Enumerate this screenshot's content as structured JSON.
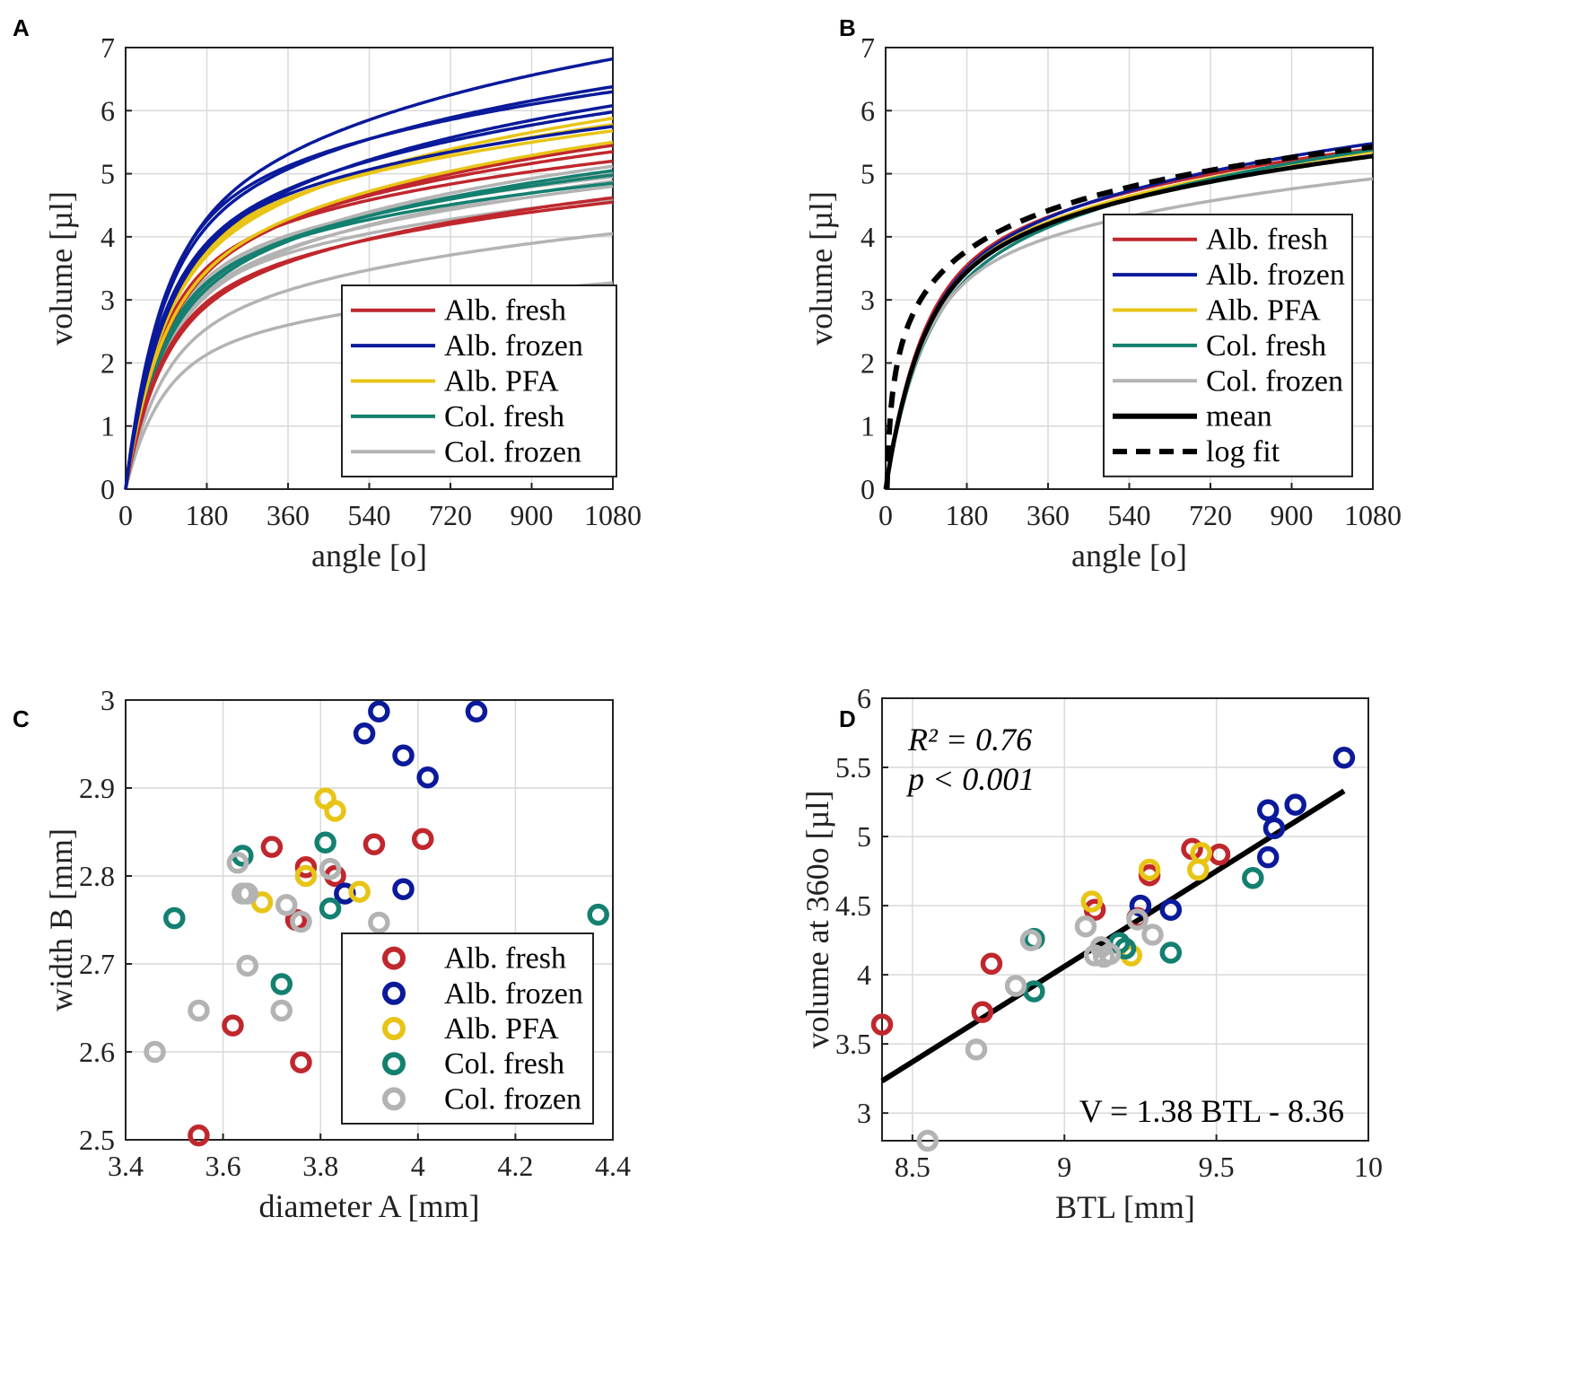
{
  "colors": {
    "alb_fresh": "#c0272d",
    "alb_frozen": "#0a1a9a",
    "alb_pfa": "#e8c416",
    "col_fresh": "#138070",
    "col_frozen": "#b3b3b3",
    "mean": "#000000"
  },
  "panel_labels": [
    "A",
    "B",
    "C",
    "D"
  ],
  "chart_data": [
    {
      "id": "A",
      "type": "line",
      "xlabel": "angle [o]",
      "ylabel": "volume [µl]",
      "xlim": [
        0,
        1080
      ],
      "ylim": [
        0,
        7
      ],
      "xticks": [
        0,
        180,
        360,
        540,
        720,
        900,
        1080
      ],
      "yticks": [
        0,
        1,
        2,
        3,
        4,
        5,
        6,
        7
      ],
      "grid": true,
      "legend_position": "bottom-right",
      "legend": [
        "Alb. fresh",
        "Alb. frozen",
        "Alb. PFA",
        "Col. fresh",
        "Col. frozen"
      ],
      "curve_model": "v(angle) = a * (1 - exp(-angle/72)) + b * ln(1 + angle/72); values given as v at 1080",
      "series": [
        {
          "name": "Alb. fresh",
          "color_key": "alb_fresh",
          "end_values": [
            5.45,
            5.35,
            5.2,
            4.62,
            4.55
          ]
        },
        {
          "name": "Alb. frozen",
          "color_key": "alb_frozen",
          "end_values": [
            6.82,
            6.38,
            6.3,
            6.08,
            5.98,
            5.75
          ]
        },
        {
          "name": "Alb. PFA",
          "color_key": "alb_pfa",
          "end_values": [
            5.88,
            5.78,
            5.68,
            5.5
          ]
        },
        {
          "name": "Col. fresh",
          "color_key": "col_fresh",
          "end_values": [
            5.05,
            4.98,
            4.85
          ]
        },
        {
          "name": "Col. frozen",
          "color_key": "col_frozen",
          "end_values": [
            5.12,
            5.02,
            4.95,
            4.88,
            4.8,
            4.6,
            4.05,
            3.27
          ]
        }
      ]
    },
    {
      "id": "B",
      "type": "line",
      "xlabel": "angle [o]",
      "ylabel": "volume [µl]",
      "xlim": [
        0,
        1080
      ],
      "ylim": [
        0,
        7
      ],
      "xticks": [
        0,
        180,
        360,
        540,
        720,
        900,
        1080
      ],
      "yticks": [
        0,
        1,
        2,
        3,
        4,
        5,
        6,
        7
      ],
      "grid": true,
      "legend_position": "top-right",
      "legend": [
        "Alb. fresh",
        "Alb. frozen",
        "Alb. PFA",
        "Col. fresh",
        "Col. frozen",
        "mean",
        "log fit"
      ],
      "series": [
        {
          "name": "Alb. fresh",
          "color_key": "alb_fresh",
          "end_value": 5.4
        },
        {
          "name": "Alb. frozen",
          "color_key": "alb_frozen",
          "end_value": 5.48
        },
        {
          "name": "Alb. PFA",
          "color_key": "alb_pfa",
          "end_value": 5.35
        },
        {
          "name": "Col. fresh",
          "color_key": "col_fresh",
          "end_value": 5.38
        },
        {
          "name": "Col. frozen",
          "color_key": "col_frozen",
          "end_value": 4.92
        },
        {
          "name": "mean",
          "color_key": "mean",
          "end_value": 5.28,
          "style": "solid"
        },
        {
          "name": "log fit",
          "color_key": "mean",
          "style": "dashed",
          "model": "v = 0.92 * ln(angle) - 1.0"
        }
      ]
    },
    {
      "id": "C",
      "type": "scatter",
      "xlabel": "diameter A [mm]",
      "ylabel": "width B [mm]",
      "xlim": [
        3.4,
        4.4
      ],
      "ylim": [
        2.5,
        3.0
      ],
      "xticks": [
        3.4,
        3.6,
        3.8,
        4.0,
        4.2,
        4.4
      ],
      "ytick_labels": [
        "2.5",
        "2.6",
        "2.7",
        "2.8",
        "2.9",
        "3"
      ],
      "xtick_labels": [
        "3.4",
        "3.6",
        "3.8",
        "4",
        "4.2",
        "4.4"
      ],
      "grid": true,
      "legend_position": "bottom-right",
      "legend": [
        "Alb. fresh",
        "Alb. frozen",
        "Alb. PFA",
        "Col. fresh",
        "Col. frozen"
      ],
      "series": [
        {
          "name": "Alb. fresh",
          "color_key": "alb_fresh",
          "points": [
            [
              3.55,
              2.505
            ],
            [
              3.62,
              2.63
            ],
            [
              3.76,
              2.588
            ],
            [
              3.7,
              2.833
            ],
            [
              3.77,
              2.81
            ],
            [
              3.75,
              2.75
            ],
            [
              3.83,
              2.8
            ],
            [
              3.91,
              2.836
            ],
            [
              4.01,
              2.842
            ]
          ]
        },
        {
          "name": "Alb. frozen",
          "color_key": "alb_frozen",
          "points": [
            [
              3.89,
              2.962
            ],
            [
              3.92,
              2.987
            ],
            [
              3.97,
              2.937
            ],
            [
              4.02,
              2.912
            ],
            [
              4.12,
              2.987
            ],
            [
              3.97,
              2.785
            ],
            [
              3.85,
              2.78
            ]
          ]
        },
        {
          "name": "Alb. PFA",
          "color_key": "alb_pfa",
          "points": [
            [
              3.81,
              2.888
            ],
            [
              3.83,
              2.874
            ],
            [
              3.77,
              2.8
            ],
            [
              3.88,
              2.782
            ],
            [
              3.68,
              2.77
            ]
          ]
        },
        {
          "name": "Col. fresh",
          "color_key": "col_fresh",
          "points": [
            [
              3.5,
              2.752
            ],
            [
              3.64,
              2.823
            ],
            [
              3.81,
              2.838
            ],
            [
              3.82,
              2.763
            ],
            [
              3.72,
              2.677
            ],
            [
              4.37,
              2.756
            ]
          ]
        },
        {
          "name": "Col. frozen",
          "color_key": "col_frozen",
          "points": [
            [
              3.46,
              2.6
            ],
            [
              3.55,
              2.647
            ],
            [
              3.63,
              2.815
            ],
            [
              3.65,
              2.78
            ],
            [
              3.64,
              2.78
            ],
            [
              3.65,
              2.698
            ],
            [
              3.73,
              2.767
            ],
            [
              3.72,
              2.647
            ],
            [
              3.76,
              2.748
            ],
            [
              3.82,
              2.808
            ],
            [
              3.92,
              2.747
            ]
          ]
        }
      ]
    },
    {
      "id": "D",
      "type": "scatter",
      "xlabel": "BTL [mm]",
      "ylabel": "volume at 360o [µl]",
      "xlim": [
        8.4,
        10
      ],
      "ylim": [
        2.8,
        6
      ],
      "xticks": [
        8.5,
        9,
        9.5,
        10
      ],
      "xtick_labels": [
        "8.5",
        "9",
        "9.5",
        "10"
      ],
      "yticks": [
        3,
        3.5,
        4,
        4.5,
        5,
        5.5,
        6
      ],
      "ytick_labels": [
        "3",
        "3.5",
        "4",
        "4.5",
        "5",
        "5.5",
        "6"
      ],
      "grid": true,
      "annotations": {
        "r2": "R² = 0.76",
        "p": "p < 0.001",
        "equation": "V = 1.38 BTL - 8.36"
      },
      "fit_line": {
        "slope": 1.38,
        "intercept": -8.36,
        "x_range": [
          8.4,
          9.92
        ]
      },
      "series": [
        {
          "name": "Alb. fresh",
          "color_key": "alb_fresh",
          "points": [
            [
              8.4,
              3.64
            ],
            [
              8.73,
              3.73
            ],
            [
              8.76,
              4.08
            ],
            [
              9.1,
              4.47
            ],
            [
              9.24,
              4.41
            ],
            [
              9.28,
              4.72
            ],
            [
              9.42,
              4.91
            ],
            [
              9.51,
              4.87
            ]
          ]
        },
        {
          "name": "Alb. frozen",
          "color_key": "alb_frozen",
          "points": [
            [
              9.25,
              4.5
            ],
            [
              9.35,
              4.47
            ],
            [
              9.67,
              4.85
            ],
            [
              9.67,
              5.19
            ],
            [
              9.69,
              5.06
            ],
            [
              9.76,
              5.23
            ],
            [
              9.92,
              5.57
            ]
          ]
        },
        {
          "name": "Alb. PFA",
          "color_key": "alb_pfa",
          "points": [
            [
              9.09,
              4.53
            ],
            [
              9.22,
              4.14
            ],
            [
              9.28,
              4.76
            ],
            [
              9.44,
              4.76
            ],
            [
              9.45,
              4.88
            ]
          ]
        },
        {
          "name": "Col. fresh",
          "color_key": "col_fresh",
          "points": [
            [
              8.9,
              3.88
            ],
            [
              8.9,
              4.26
            ],
            [
              9.18,
              4.23
            ],
            [
              9.2,
              4.19
            ],
            [
              9.35,
              4.16
            ],
            [
              9.62,
              4.7
            ]
          ]
        },
        {
          "name": "Col. frozen",
          "color_key": "col_frozen",
          "points": [
            [
              8.55,
              2.8
            ],
            [
              8.71,
              3.46
            ],
            [
              8.84,
              3.92
            ],
            [
              8.89,
              4.25
            ],
            [
              9.07,
              4.35
            ],
            [
              9.12,
              4.2
            ],
            [
              9.1,
              4.14
            ],
            [
              9.13,
              4.13
            ],
            [
              9.15,
              4.15
            ],
            [
              9.24,
              4.4
            ],
            [
              9.29,
              4.29
            ]
          ]
        }
      ]
    }
  ]
}
